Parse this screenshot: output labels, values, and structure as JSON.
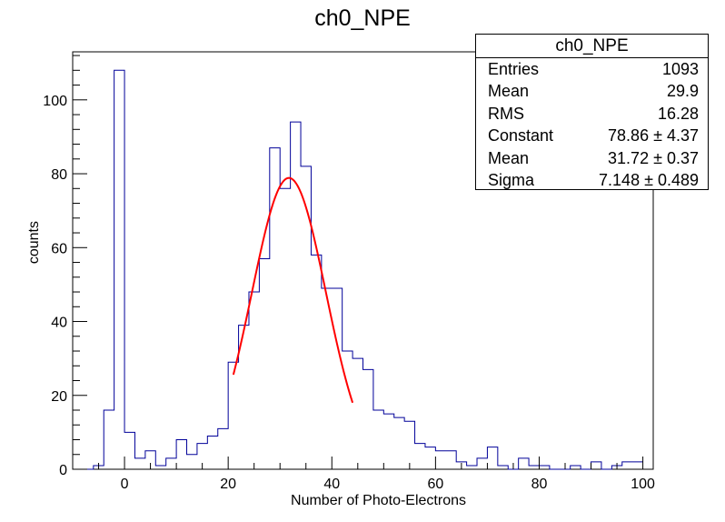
{
  "chart_data": {
    "type": "bar",
    "title": "ch0_NPE",
    "xlabel": "Number of Photo-Electrons",
    "ylabel": "counts",
    "xlim": [
      -10,
      102
    ],
    "ylim": [
      0,
      113
    ],
    "bin_width": 2,
    "x_ticks": [
      0,
      20,
      40,
      60,
      80,
      100
    ],
    "y_ticks": [
      0,
      20,
      40,
      60,
      80,
      100
    ],
    "x": [
      -7,
      -5,
      -3,
      -1,
      1,
      3,
      5,
      7,
      9,
      11,
      13,
      15,
      17,
      19,
      21,
      23,
      25,
      27,
      29,
      31,
      33,
      35,
      37,
      39,
      41,
      43,
      45,
      47,
      49,
      51,
      53,
      55,
      57,
      59,
      61,
      63,
      65,
      67,
      69,
      71,
      73,
      75,
      77,
      79,
      81,
      83,
      85,
      87,
      89,
      91,
      93,
      95,
      97,
      99
    ],
    "values": [
      0,
      1,
      16,
      108,
      10,
      3,
      5,
      1,
      3,
      8,
      4,
      7,
      9,
      11,
      29,
      39,
      48,
      57,
      87,
      76,
      94,
      82,
      58,
      49,
      49,
      32,
      30,
      27,
      16,
      15,
      14,
      13,
      7,
      6,
      5,
      5,
      2,
      1,
      3,
      6,
      1,
      0,
      3,
      1,
      1,
      0,
      0,
      1,
      0,
      2,
      0,
      1,
      2,
      2
    ],
    "hist_color": "#000099",
    "fit": {
      "name": "gaus",
      "constant": 78.86,
      "mean": 31.72,
      "sigma": 7.148,
      "range": [
        21,
        44
      ],
      "color": "#ff0000"
    },
    "grid": false,
    "legend": "top-right"
  },
  "stats": {
    "title": "ch0_NPE",
    "rows": [
      {
        "key": "Entries",
        "value": "1093"
      },
      {
        "key": "Mean",
        "value": "29.9"
      },
      {
        "key": "RMS",
        "value": "16.28"
      },
      {
        "key": "Constant",
        "value": "78.86 ± 4.37"
      },
      {
        "key": "Mean",
        "value": "31.72 ± 0.37"
      },
      {
        "key": "Sigma",
        "value": "7.148 ± 0.489"
      }
    ]
  }
}
